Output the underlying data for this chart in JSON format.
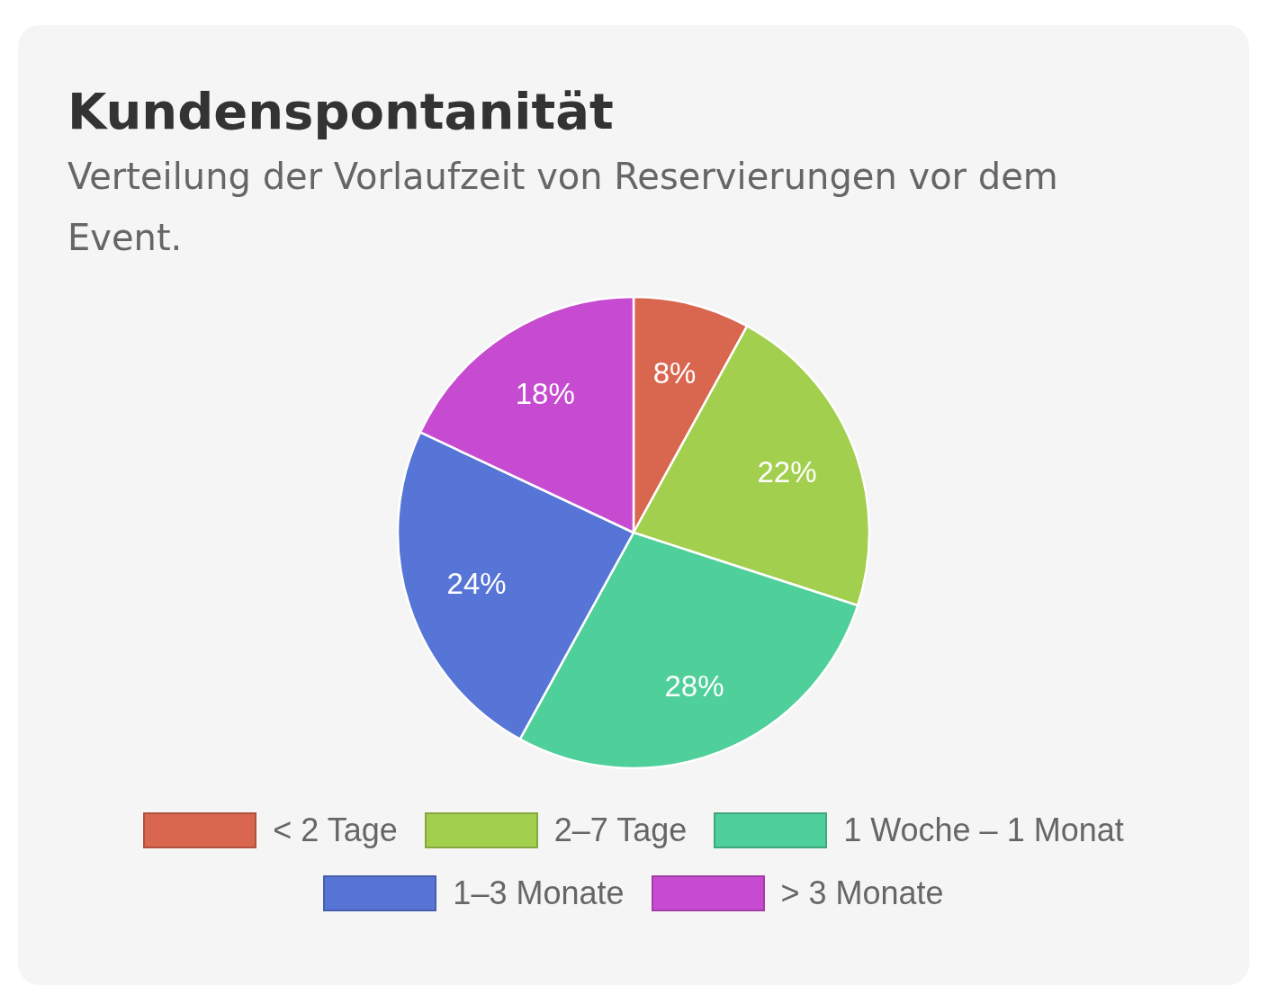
{
  "chart_data": {
    "type": "pie",
    "title": "Kundenspontanität",
    "subtitle": "Verteilung der Vorlaufzeit von Reservierungen vor dem Event.",
    "categories": [
      "< 2 Tage",
      "2–7 Tage",
      "1 Woche – 1 Monat",
      "1–3 Monate",
      "> 3 Monate"
    ],
    "values": [
      8,
      22,
      28,
      24,
      18
    ],
    "colors": [
      "#d9664f",
      "#a3cf4f",
      "#4fcf9a",
      "#5775d6",
      "#c74bd0"
    ],
    "value_labels": [
      "8%",
      "22%",
      "28%",
      "24%",
      "18%"
    ],
    "legend": "bottom"
  }
}
